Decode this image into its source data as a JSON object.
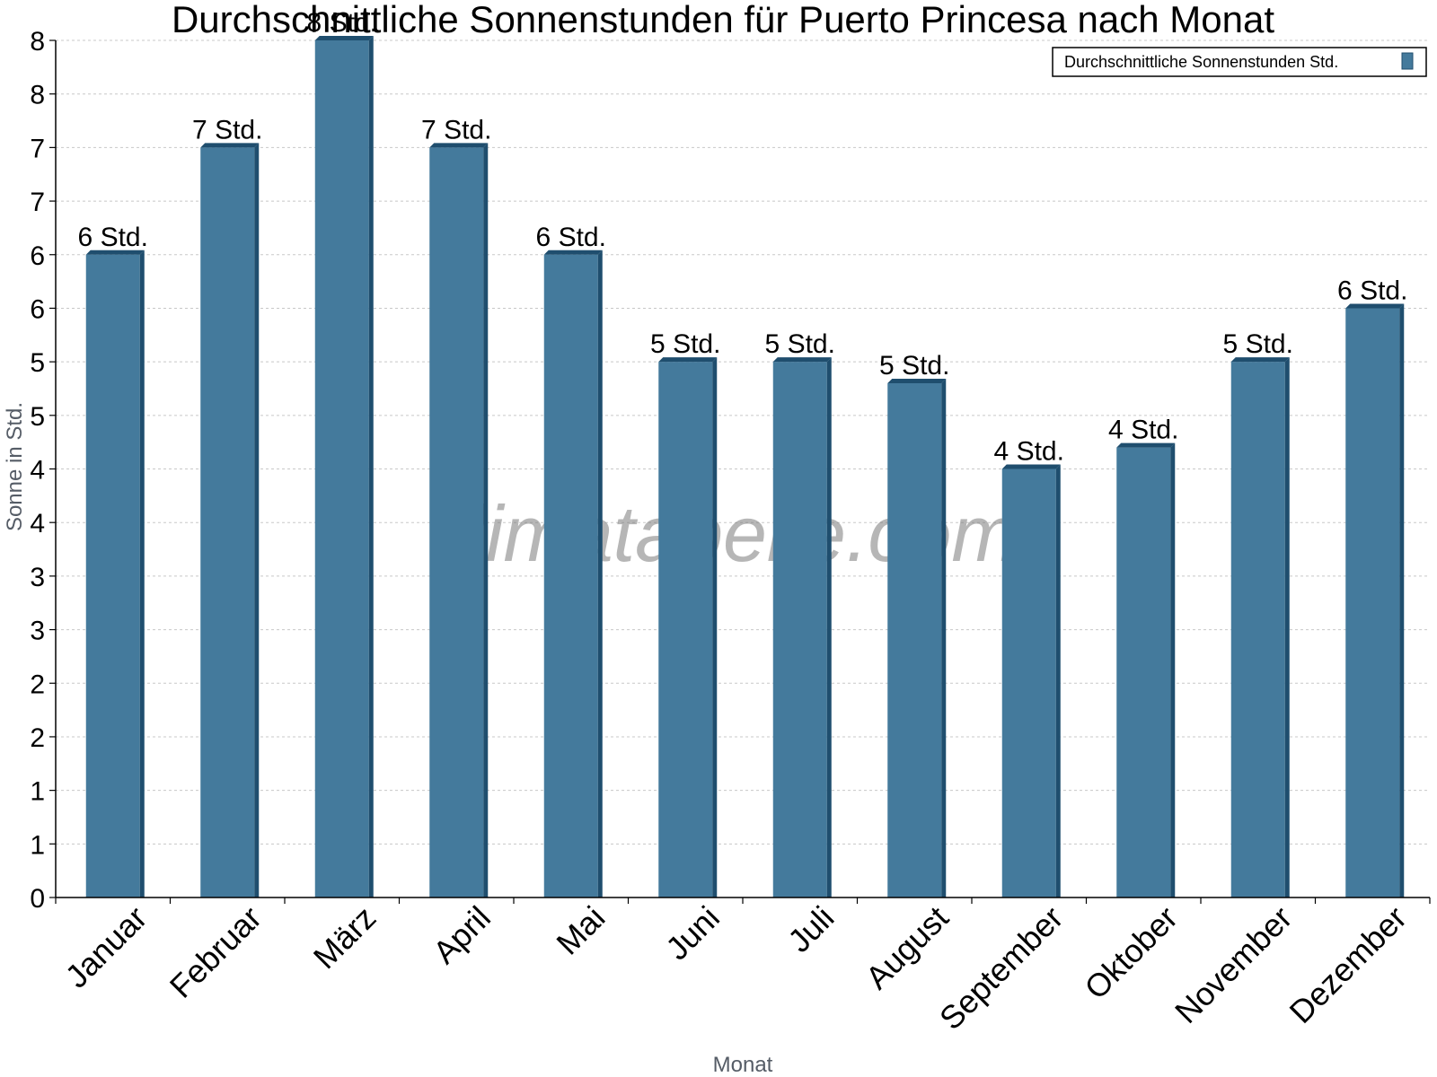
{
  "chart_data": {
    "type": "bar",
    "title": "Durchschnittliche Sonnenstunden für Puerto Princesa nach Monat",
    "xlabel": "Monat",
    "ylabel": "Sonne in Std.",
    "ylim": [
      0,
      8
    ],
    "y_tick_labels": [
      "0",
      "1",
      "1",
      "2",
      "2",
      "3",
      "3",
      "4",
      "4",
      "5",
      "5",
      "6",
      "6",
      "7",
      "7",
      "8",
      "8"
    ],
    "categories": [
      "Januar",
      "Februar",
      "März",
      "April",
      "Mai",
      "Juni",
      "Juli",
      "August",
      "September",
      "Oktober",
      "November",
      "Dezember"
    ],
    "series": [
      {
        "name": "Durchschnittliche Sonnenstunden Std.",
        "values": [
          6.0,
          7.0,
          8.0,
          7.0,
          6.0,
          5.0,
          5.0,
          4.8,
          4.0,
          4.2,
          5.0,
          5.5
        ],
        "labels": [
          "6 Std.",
          "7 Std.",
          "8 Std.",
          "7 Std.",
          "6 Std.",
          "5 Std.",
          "5 Std.",
          "5 Std.",
          "4 Std.",
          "4 Std.",
          "5 Std.",
          "6 Std."
        ]
      }
    ],
    "grid": true,
    "legend_position": "top-right",
    "colors": {
      "bar": "#447a9c",
      "bar_side": "#1f4e6e",
      "grid": "#c8c8c8"
    }
  },
  "watermark": "klimatabelle.com"
}
